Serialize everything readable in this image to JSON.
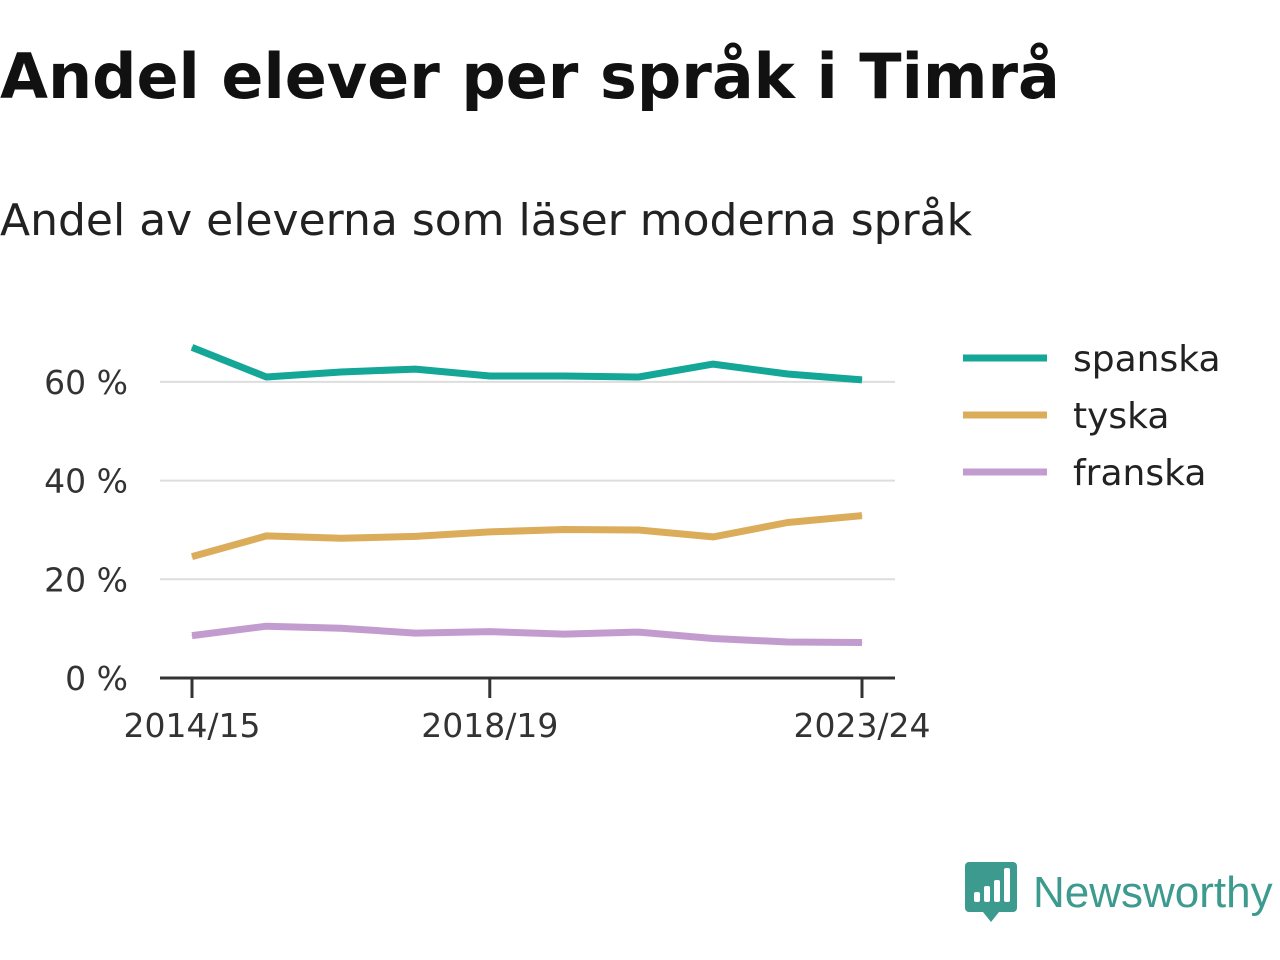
{
  "title": "Andel elever per språk i Timrå",
  "subtitle": "Andel av eleverna som läser moderna språk",
  "brand": {
    "name": "Newsworthy",
    "icon": "newsworthy-logo-icon",
    "color": "#3d9a8e"
  },
  "chart_data": {
    "type": "line",
    "x": [
      "2014/15",
      "2015/16",
      "2016/17",
      "2017/18",
      "2018/19",
      "2019/20",
      "2020/21",
      "2021/22",
      "2022/23",
      "2023/24"
    ],
    "x_ticks": [
      "2014/15",
      "2018/19",
      "2023/24"
    ],
    "y_ticks": [
      0,
      20,
      40,
      60
    ],
    "y_tick_labels": [
      "0 %",
      "20 %",
      "40 %",
      "60 %"
    ],
    "ylim": [
      0,
      70
    ],
    "grid": true,
    "legend_position": "right",
    "series": [
      {
        "name": "spanska",
        "color": "#14a697",
        "values": [
          67,
          61,
          62,
          62.6,
          61.2,
          61.2,
          61,
          63.6,
          61.6,
          60.4
        ]
      },
      {
        "name": "tyska",
        "color": "#dbac5a",
        "values": [
          24.6,
          28.8,
          28.3,
          28.7,
          29.6,
          30.1,
          30,
          28.6,
          31.5,
          32.9
        ]
      },
      {
        "name": "franska",
        "color": "#c39ccf",
        "values": [
          8.6,
          10.5,
          10.1,
          9.1,
          9.4,
          8.9,
          9.3,
          8,
          7.3,
          7.2
        ]
      }
    ]
  }
}
